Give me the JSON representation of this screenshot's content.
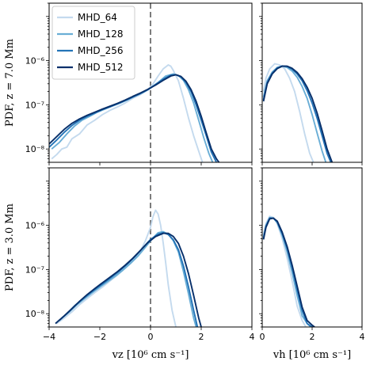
{
  "chart_data": {
    "type": "line",
    "log_y": true,
    "ylim": [
      5e-09,
      2e-05
    ],
    "yticks": [
      {
        "value": 1e-08,
        "label": "10⁻⁸"
      },
      {
        "value": 1e-07,
        "label": "10⁻⁷"
      },
      {
        "value": 1e-06,
        "label": "10⁻⁶"
      }
    ],
    "legend": {
      "placement": "top-left",
      "entries": [
        "MHD_64",
        "MHD_128",
        "MHD_256",
        "MHD_512"
      ]
    },
    "colors": {
      "MHD_64": "#c4daee",
      "MHD_128": "#6aaed6",
      "MHD_256": "#2474b7",
      "MHD_512": "#08306b"
    },
    "xlabel_vz": "vz [10⁶ cm s⁻¹]",
    "xlabel_vh": "vh [10⁶ cm s⁻¹]",
    "vz_xlim": [
      -4,
      4
    ],
    "vz_xticks": [
      "−4",
      "−2",
      "0",
      "2",
      "4"
    ],
    "vh_xlim": [
      0,
      4
    ],
    "vh_xticks": [
      "0",
      "2",
      "4"
    ],
    "zero_line": {
      "x": 0,
      "style": "dashed"
    },
    "rows": [
      {
        "ylabel": "PDF, z = 7.0 Mm",
        "vz_series": [
          {
            "name": "MHD_64",
            "x": [
              -3.9,
              -3.7,
              -3.5,
              -3.3,
              -3.1,
              -2.8,
              -2.5,
              -2.2,
              -1.9,
              -1.6,
              -1.3,
              -1.0,
              -0.7,
              -0.4,
              -0.1,
              0.1,
              0.3,
              0.5,
              0.7,
              0.8,
              0.9,
              1.1,
              1.3,
              1.5,
              1.7,
              1.9,
              2.05
            ],
            "y": [
              6e-09,
              7.5e-09,
              1e-08,
              1.1e-08,
              1.7e-08,
              2.2e-08,
              3.5e-08,
              4.5e-08,
              6e-08,
              7.5e-08,
              9e-08,
              1.1e-07,
              1.4e-07,
              1.7e-07,
              2.2e-07,
              3e-07,
              4.5e-07,
              6.5e-07,
              8e-07,
              7.5e-07,
              6e-07,
              3.5e-07,
              1.4e-07,
              5e-08,
              2e-08,
              9e-09,
              5e-09
            ]
          },
          {
            "name": "MHD_128",
            "x": [
              -3.9,
              -3.6,
              -3.3,
              -3.0,
              -2.7,
              -2.4,
              -2.1,
              -1.8,
              -1.5,
              -1.2,
              -0.9,
              -0.6,
              -0.3,
              0.0,
              0.3,
              0.6,
              0.9,
              1.1,
              1.3,
              1.5,
              1.7,
              1.9,
              2.1,
              2.3,
              2.45
            ],
            "y": [
              1e-08,
              1.4e-08,
              2.2e-08,
              3.3e-08,
              4.5e-08,
              5.5e-08,
              6.8e-08,
              8e-08,
              9.5e-08,
              1.1e-07,
              1.3e-07,
              1.6e-07,
              1.9e-07,
              2.4e-07,
              3.2e-07,
              4.5e-07,
              5e-07,
              4.6e-07,
              3.6e-07,
              2.2e-07,
              1.1e-07,
              4.5e-08,
              1.8e-08,
              8e-09,
              5e-09
            ]
          },
          {
            "name": "MHD_256",
            "x": [
              -4.0,
              -3.7,
              -3.4,
              -3.1,
              -2.8,
              -2.5,
              -2.2,
              -1.9,
              -1.6,
              -1.3,
              -1.0,
              -0.7,
              -0.4,
              -0.1,
              0.2,
              0.5,
              0.8,
              1.0,
              1.2,
              1.4,
              1.6,
              1.8,
              2.0,
              2.2,
              2.4,
              2.6
            ],
            "y": [
              1.1e-08,
              1.6e-08,
              2.4e-08,
              3.4e-08,
              4.5e-08,
              5.5e-08,
              6.5e-08,
              7.8e-08,
              9e-08,
              1.05e-07,
              1.25e-07,
              1.5e-07,
              1.8e-07,
              2.2e-07,
              2.9e-07,
              3.8e-07,
              4.7e-07,
              4.8e-07,
              4.3e-07,
              3.2e-07,
              2e-07,
              1e-07,
              4.5e-08,
              2e-08,
              8.5e-09,
              5e-09
            ]
          },
          {
            "name": "MHD_512",
            "x": [
              -4.0,
              -3.7,
              -3.4,
              -3.1,
              -2.8,
              -2.5,
              -2.2,
              -1.9,
              -1.6,
              -1.3,
              -1.0,
              -0.7,
              -0.4,
              -0.1,
              0.2,
              0.5,
              0.8,
              1.0,
              1.2,
              1.4,
              1.6,
              1.8,
              2.0,
              2.2,
              2.4,
              2.6,
              2.7
            ],
            "y": [
              1.3e-08,
              1.9e-08,
              2.8e-08,
              3.8e-08,
              4.8e-08,
              5.8e-08,
              6.8e-08,
              8e-08,
              9.3e-08,
              1.08e-07,
              1.28e-07,
              1.55e-07,
              1.85e-07,
              2.25e-07,
              2.8e-07,
              3.6e-07,
              4.5e-07,
              4.8e-07,
              4.4e-07,
              3.4e-07,
              2.2e-07,
              1.2e-07,
              5.5e-08,
              2.3e-08,
              1e-08,
              6e-09,
              5e-09
            ]
          }
        ],
        "vh_series": [
          {
            "name": "MHD_64",
            "x": [
              0.05,
              0.15,
              0.3,
              0.5,
              0.7,
              0.9,
              1.1,
              1.3,
              1.5,
              1.7,
              1.9,
              2.05
            ],
            "y": [
              2e-07,
              4e-07,
              6.5e-07,
              8.5e-07,
              8e-07,
              6.5e-07,
              4e-07,
              2e-07,
              7e-08,
              2.2e-08,
              8e-09,
              5e-09
            ]
          },
          {
            "name": "MHD_128",
            "x": [
              0.05,
              0.2,
              0.4,
              0.6,
              0.8,
              1.0,
              1.2,
              1.4,
              1.6,
              1.8,
              2.0,
              2.2,
              2.4,
              2.55
            ],
            "y": [
              1.5e-07,
              3.5e-07,
              5.5e-07,
              7e-07,
              7.5e-07,
              7e-07,
              5.8e-07,
              4.2e-07,
              2.6e-07,
              1.4e-07,
              6e-08,
              2.3e-08,
              9e-09,
              5e-09
            ]
          },
          {
            "name": "MHD_256",
            "x": [
              0.05,
              0.2,
              0.4,
              0.6,
              0.8,
              1.0,
              1.2,
              1.4,
              1.6,
              1.8,
              2.0,
              2.2,
              2.4,
              2.6,
              2.75
            ],
            "y": [
              1.3e-07,
              3.2e-07,
              5.2e-07,
              6.8e-07,
              7.6e-07,
              7.4e-07,
              6.4e-07,
              5e-07,
              3.5e-07,
              2.1e-07,
              1.1e-07,
              5e-08,
              2e-08,
              8e-09,
              5e-09
            ]
          },
          {
            "name": "MHD_512",
            "x": [
              0.05,
              0.2,
              0.4,
              0.6,
              0.8,
              1.0,
              1.2,
              1.4,
              1.6,
              1.8,
              2.0,
              2.2,
              2.4,
              2.6,
              2.8
            ],
            "y": [
              1.2e-07,
              3e-07,
              5e-07,
              6.6e-07,
              7.5e-07,
              7.5e-07,
              6.7e-07,
              5.4e-07,
              3.9e-07,
              2.5e-07,
              1.4e-07,
              6.5e-08,
              2.6e-08,
              1e-08,
              5e-09
            ]
          }
        ]
      },
      {
        "ylabel": "PDF, z = 3.0 Mm",
        "vz_series": [
          {
            "name": "MHD_64",
            "x": [
              -3.7,
              -3.4,
              -3.1,
              -2.8,
              -2.5,
              -2.2,
              -1.9,
              -1.6,
              -1.3,
              -1.0,
              -0.7,
              -0.4,
              -0.2,
              0.0,
              0.1,
              0.2,
              0.3,
              0.4,
              0.5,
              0.6,
              0.7,
              0.85,
              1.0
            ],
            "y": [
              6e-09,
              8e-09,
              1.1e-08,
              1.6e-08,
              2.2e-08,
              3e-08,
              4e-08,
              5.5e-08,
              7.5e-08,
              1.1e-07,
              1.6e-07,
              2.6e-07,
              4.5e-07,
              9e-07,
              1.6e-06,
              2.2e-06,
              1.8e-06,
              1e-06,
              4e-07,
              1.4e-07,
              4.5e-08,
              1.2e-08,
              5e-09
            ]
          },
          {
            "name": "MHD_128",
            "x": [
              -3.5,
              -3.2,
              -2.9,
              -2.6,
              -2.3,
              -2.0,
              -1.7,
              -1.4,
              -1.1,
              -0.8,
              -0.5,
              -0.2,
              0.1,
              0.3,
              0.5,
              0.7,
              0.9,
              1.1,
              1.3,
              1.5,
              1.7,
              1.8
            ],
            "y": [
              8e-09,
              1.1e-08,
              1.6e-08,
              2.2e-08,
              3e-08,
              4e-08,
              5.3e-08,
              7e-08,
              9.5e-08,
              1.35e-07,
              2e-07,
              3.2e-07,
              5.2e-07,
              6.8e-07,
              7.2e-07,
              6.3e-07,
              4.5e-07,
              2.5e-07,
              9e-08,
              2.8e-08,
              8e-09,
              5e-09
            ]
          },
          {
            "name": "MHD_256",
            "x": [
              -3.6,
              -3.3,
              -3.0,
              -2.7,
              -2.4,
              -2.1,
              -1.8,
              -1.5,
              -1.2,
              -0.9,
              -0.6,
              -0.3,
              0.0,
              0.3,
              0.5,
              0.7,
              0.9,
              1.1,
              1.3,
              1.5,
              1.7,
              1.85
            ],
            "y": [
              7e-09,
              1e-08,
              1.5e-08,
              2.1e-08,
              2.9e-08,
              3.9e-08,
              5.2e-08,
              7e-08,
              9.5e-08,
              1.35e-07,
              2e-07,
              3.1e-07,
              4.8e-07,
              6.3e-07,
              6.8e-07,
              6.2e-07,
              4.7e-07,
              2.8e-07,
              1.2e-07,
              4e-08,
              1.2e-08,
              5e-09
            ]
          },
          {
            "name": "MHD_512",
            "x": [
              -3.75,
              -3.4,
              -3.1,
              -2.8,
              -2.5,
              -2.2,
              -1.9,
              -1.6,
              -1.3,
              -1.0,
              -0.7,
              -0.4,
              -0.1,
              0.2,
              0.5,
              0.7,
              0.9,
              1.1,
              1.3,
              1.5,
              1.7,
              1.9,
              2.0
            ],
            "y": [
              6e-09,
              9e-09,
              1.3e-08,
              1.9e-08,
              2.7e-08,
              3.7e-08,
              5e-08,
              6.7e-08,
              9e-08,
              1.25e-07,
              1.8e-07,
              2.7e-07,
              4.1e-07,
              5.6e-07,
              6.6e-07,
              6.6e-07,
              5.6e-07,
              3.9e-07,
              2e-07,
              8e-08,
              2.6e-08,
              8e-09,
              5e-09
            ]
          }
        ],
        "vh_series": [
          {
            "name": "MHD_64",
            "x": [
              0.05,
              0.15,
              0.3,
              0.45,
              0.6,
              0.8,
              1.0,
              1.2,
              1.4,
              1.6,
              1.75
            ],
            "y": [
              6e-07,
              1.1e-06,
              1.6e-06,
              1.5e-06,
              1.1e-06,
              5e-07,
              1.8e-07,
              5.5e-08,
              1.5e-08,
              7e-09,
              5e-09
            ]
          },
          {
            "name": "MHD_128",
            "x": [
              0.05,
              0.15,
              0.3,
              0.45,
              0.6,
              0.8,
              1.0,
              1.2,
              1.4,
              1.6,
              1.8,
              1.95
            ],
            "y": [
              5.5e-07,
              1e-06,
              1.5e-06,
              1.45e-06,
              1.15e-06,
              6e-07,
              2.5e-07,
              8.5e-08,
              2.6e-08,
              9e-09,
              6e-09,
              5e-09
            ]
          },
          {
            "name": "MHD_256",
            "x": [
              0.05,
              0.15,
              0.3,
              0.45,
              0.6,
              0.8,
              1.0,
              1.2,
              1.4,
              1.6,
              1.8,
              2.0
            ],
            "y": [
              5e-07,
              9.5e-07,
              1.45e-06,
              1.45e-06,
              1.2e-06,
              6.5e-07,
              3e-07,
              1.1e-07,
              3.5e-08,
              1.2e-08,
              6e-09,
              5e-09
            ]
          },
          {
            "name": "MHD_512",
            "x": [
              0.05,
              0.15,
              0.3,
              0.45,
              0.6,
              0.8,
              1.0,
              1.2,
              1.4,
              1.6,
              1.8,
              2.0,
              2.1
            ],
            "y": [
              4.8e-07,
              9e-07,
              1.4e-06,
              1.45e-06,
              1.25e-06,
              7e-07,
              3.3e-07,
              1.25e-07,
              4.2e-08,
              1.4e-08,
              7e-09,
              5.5e-09,
              5e-09
            ]
          }
        ]
      }
    ]
  }
}
